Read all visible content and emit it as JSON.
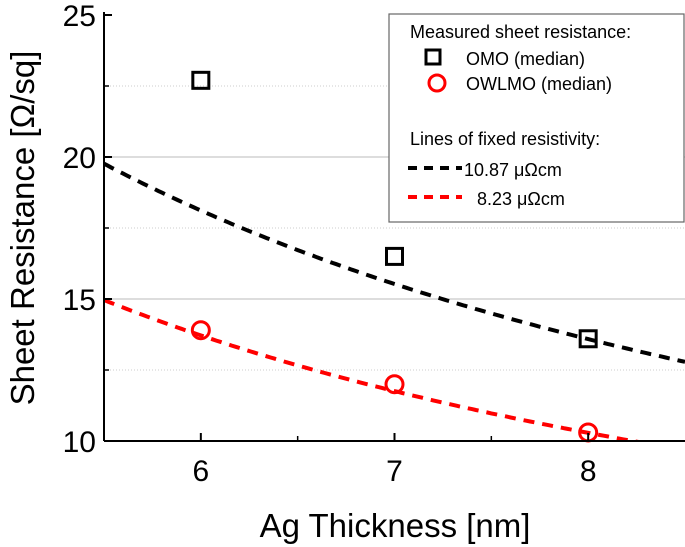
{
  "chart_data": {
    "type": "scatter",
    "xlabel": "Ag Thickness [nm]",
    "ylabel": "Sheet Resistance [Ω/sq]",
    "xlim": [
      5.5,
      8.5
    ],
    "ylim": [
      10,
      25
    ],
    "xticks": [
      "6",
      "7",
      "8"
    ],
    "yticks": [
      "10",
      "15",
      "20",
      "25"
    ],
    "grid": true,
    "legend_placement": "top-right",
    "legend_title_points": "Measured sheet resistance:",
    "legend_title_lines": "Lines of fixed resistivity:",
    "series": [
      {
        "name": "OMO (median)",
        "marker": "square",
        "color": "#000000",
        "x": [
          6,
          7,
          8
        ],
        "y": [
          22.7,
          16.5,
          13.6
        ]
      },
      {
        "name": "OWLMO (median)",
        "marker": "circle",
        "color": "#ff0000",
        "x": [
          6,
          7,
          8
        ],
        "y": [
          13.9,
          12.0,
          10.3
        ]
      }
    ],
    "lines": [
      {
        "name": "10.87 μΩcm",
        "resistivity": 10.87,
        "color": "#000000",
        "style": "dashed"
      },
      {
        "name": " 8.23 μΩcm",
        "resistivity": 8.23,
        "color": "#ff0000",
        "style": "dashed"
      }
    ]
  }
}
